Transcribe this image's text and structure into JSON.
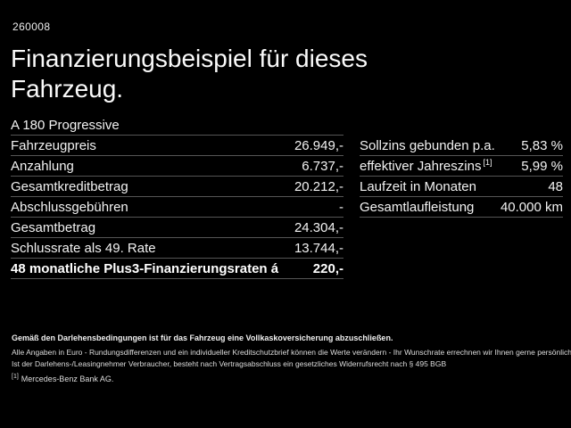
{
  "page": {
    "code": "260008",
    "title": "Finanzierungsbeispiel für dieses Fahrzeug.",
    "model": "A 180 Progressive"
  },
  "finance_table": {
    "rows": [
      {
        "label": "Fahrzeugpreis",
        "value": "26.949,-"
      },
      {
        "label": "Anzahlung",
        "value": "6.737,-"
      },
      {
        "label": "Gesamtkreditbetrag",
        "value": "20.212,-"
      },
      {
        "label": "Abschlussgebühren",
        "value": "-"
      },
      {
        "label": "Gesamtbetrag",
        "value": "24.304,-"
      },
      {
        "label": "Schlussrate als 49. Rate",
        "value": "13.744,-"
      },
      {
        "label": "48 monatliche Plus3-Finanzierungsraten á",
        "value": "220,-"
      }
    ]
  },
  "conditions_table": {
    "rows": [
      {
        "label": "Sollzins gebunden p.a.",
        "sup": "",
        "value": "5,83 %"
      },
      {
        "label": "effektiver Jahreszins",
        "sup": "[1]",
        "value": "5,99 %"
      },
      {
        "label": "Laufzeit in Monaten",
        "sup": "",
        "value": "48"
      },
      {
        "label": "Gesamtlaufleistung",
        "sup": "",
        "value": "40.000 km"
      }
    ]
  },
  "footnotes": {
    "insurance_bold": "Gemäß den Darlehensbedingungen ist für das Fahrzeug eine Vollkaskoversicherung abzuschließen.",
    "line1": "Alle Angaben in Euro - Rundungsdifferenzen und ein individueller Kreditschutzbrief können die Werte verändern - Ihr Wunschrate errechnen wir Ihnen gerne persönlich",
    "line2": "Ist der Darlehens-/Leasingnehmer Verbraucher, besteht nach Vertragsabschluss ein gesetzliches Widerrufsrecht nach § 495 BGB",
    "ref_marker": "[1]",
    "ref_text": "Mercedes-Benz Bank AG."
  },
  "colors": {
    "background": "#000000",
    "text": "#f2f2f2",
    "divider": "#555555"
  }
}
